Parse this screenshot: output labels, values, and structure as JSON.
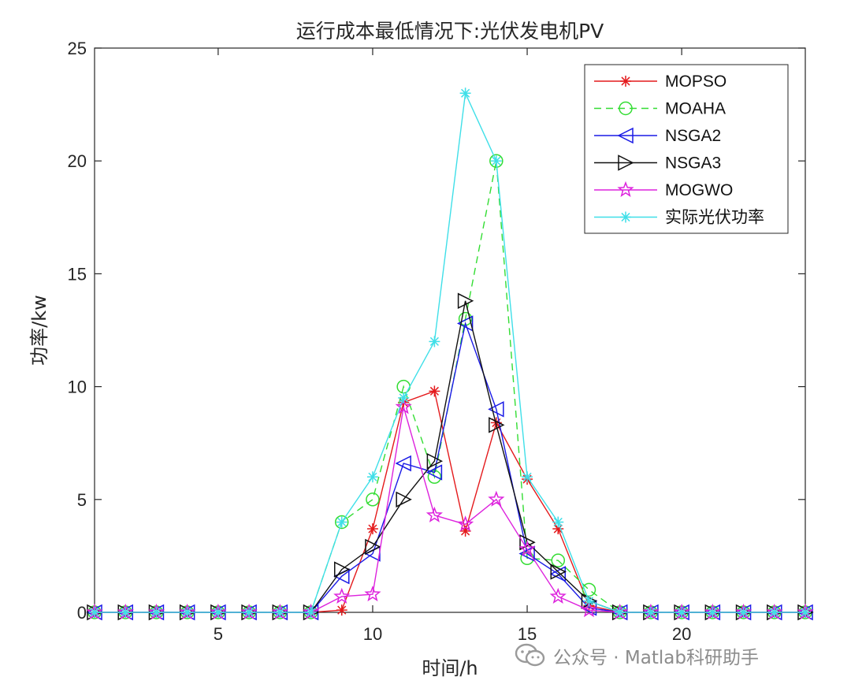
{
  "chart_data": {
    "type": "line",
    "title": "运行成本最低情况下:光伏发电机PV",
    "xlabel": "时间/h",
    "ylabel": "功率/kw",
    "xlim": [
      1,
      24
    ],
    "ylim": [
      0,
      25
    ],
    "xticks": [
      5,
      10,
      15,
      20
    ],
    "yticks": [
      0,
      5,
      10,
      15,
      20,
      25
    ],
    "grid": false,
    "legend_position": "top-right",
    "x": [
      1,
      2,
      3,
      4,
      5,
      6,
      7,
      8,
      9,
      10,
      11,
      12,
      13,
      14,
      15,
      16,
      17,
      18,
      19,
      20,
      21,
      22,
      23,
      24
    ],
    "series": [
      {
        "name": "MOPSO",
        "color": "#e41a1c",
        "marker": "asterisk",
        "line": "solid",
        "values": [
          0,
          0,
          0,
          0,
          0,
          0,
          0,
          0,
          0.1,
          3.7,
          9.3,
          9.8,
          3.6,
          8.4,
          5.9,
          3.7,
          0.3,
          0,
          0,
          0,
          0,
          0,
          0,
          0
        ]
      },
      {
        "name": "MOAHA",
        "color": "#33dd33",
        "marker": "circle",
        "line": "dashed",
        "values": [
          0,
          0,
          0,
          0,
          0,
          0,
          0,
          0,
          4.0,
          5.0,
          10.0,
          6.0,
          13.0,
          20.0,
          2.4,
          2.3,
          1.0,
          0,
          0,
          0,
          0,
          0,
          0,
          0
        ]
      },
      {
        "name": "NSGA2",
        "color": "#1a1ae6",
        "marker": "triangle-left",
        "line": "solid",
        "values": [
          0,
          0,
          0,
          0,
          0,
          0,
          0,
          0,
          1.6,
          2.6,
          6.6,
          6.2,
          12.8,
          9.0,
          2.6,
          1.7,
          0.2,
          0,
          0,
          0,
          0,
          0,
          0,
          0
        ]
      },
      {
        "name": "NSGA3",
        "color": "#111111",
        "marker": "triangle-right",
        "line": "solid",
        "values": [
          0,
          0,
          0,
          0,
          0,
          0,
          0,
          0,
          1.9,
          2.9,
          5.0,
          6.7,
          13.8,
          8.3,
          3.1,
          1.8,
          0.5,
          0,
          0,
          0,
          0,
          0,
          0,
          0
        ]
      },
      {
        "name": "MOGWO",
        "color": "#dd22dd",
        "marker": "pentagram",
        "line": "solid",
        "values": [
          0,
          0,
          0,
          0,
          0,
          0,
          0,
          0,
          0.7,
          0.8,
          9.1,
          4.3,
          3.9,
          5.0,
          2.8,
          0.7,
          0.1,
          0,
          0,
          0,
          0,
          0,
          0,
          0
        ]
      },
      {
        "name": "实际光伏功率",
        "color": "#3fdfe8",
        "marker": "asterisk",
        "line": "solid",
        "values": [
          0,
          0,
          0,
          0,
          0,
          0,
          0,
          0,
          4.0,
          6.0,
          9.5,
          12.0,
          23.0,
          20.0,
          6.0,
          4.0,
          0.5,
          0,
          0,
          0,
          0,
          0,
          0,
          0
        ]
      }
    ]
  },
  "watermark": {
    "text": "公众号 · Matlab科研助手",
    "icon": "wechat-icon"
  }
}
